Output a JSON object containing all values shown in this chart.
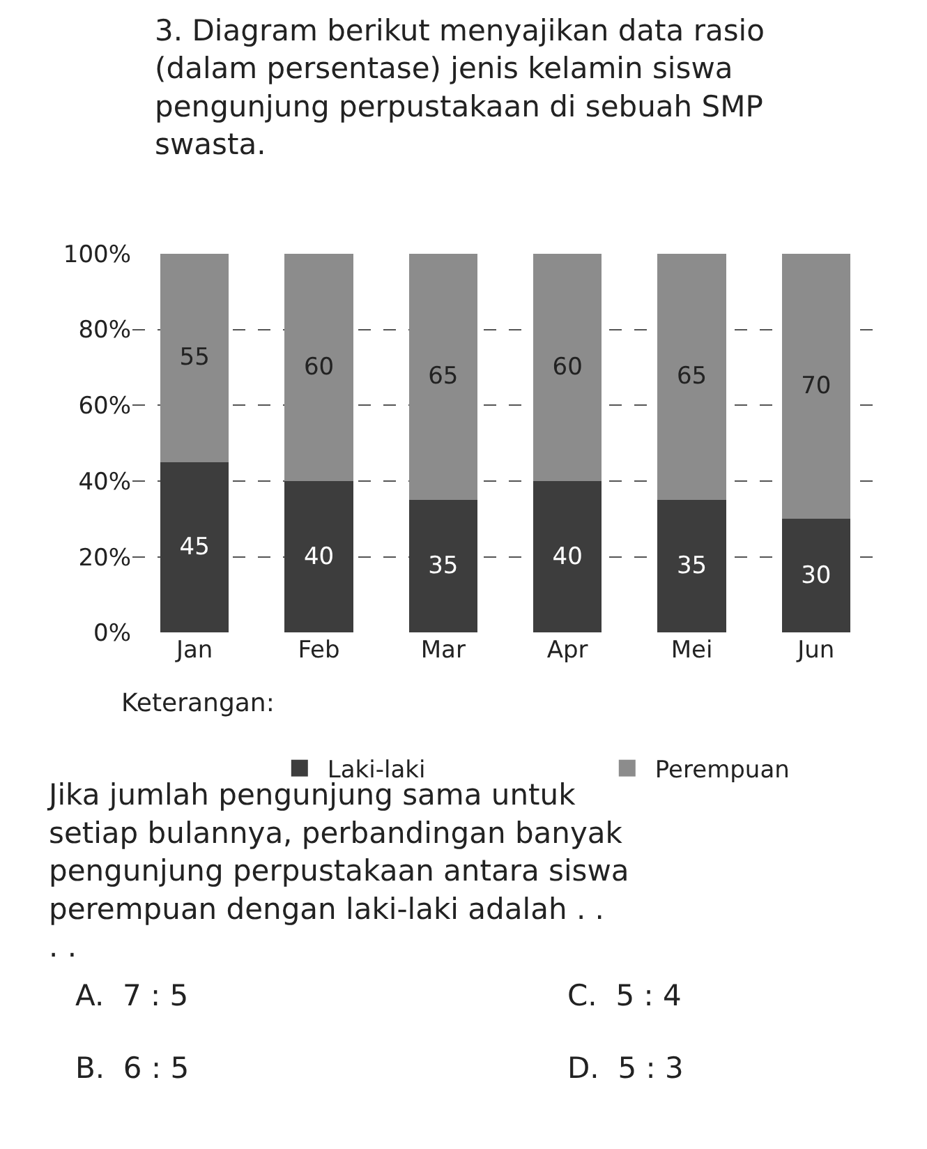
{
  "chart_data": {
    "type": "bar",
    "title": "3. Diagram berikut menyajikan data rasio (dalam persentase) jenis kelamin siswa pengunjung perpustakaan di sebuah SMP swasta.",
    "categories": [
      "Jan",
      "Feb",
      "Mar",
      "Apr",
      "Mei",
      "Jun"
    ],
    "series": [
      {
        "name": "Laki-laki",
        "color": "#3d3d3d",
        "values": [
          45,
          40,
          35,
          40,
          35,
          30
        ]
      },
      {
        "name": "Perempuan",
        "color": "#8c8c8c",
        "values": [
          55,
          60,
          65,
          60,
          65,
          70
        ]
      }
    ],
    "stacked": true,
    "data_labels": true,
    "ylim": [
      0,
      100
    ],
    "yticks": [
      {
        "value": 0,
        "label": "0%"
      },
      {
        "value": 20,
        "label": "20%"
      },
      {
        "value": 40,
        "label": "40%"
      },
      {
        "value": 60,
        "label": "60%"
      },
      {
        "value": 80,
        "label": "80%"
      },
      {
        "value": 100,
        "label": "100%"
      }
    ],
    "grid": "y",
    "legend": "bottom",
    "legend_title": "Keterangan:",
    "annotations": [
      "Jika jumlah pengunjung sama untuk setiap bulannya, perbandingan banyak pengunjung perpustakaan antara siswa perempuan dengan laki-laki adalah . . . .",
      "A.  7 : 5",
      "C.  5 : 4",
      "B.  6 : 5",
      "D.  5 : 3"
    ]
  }
}
